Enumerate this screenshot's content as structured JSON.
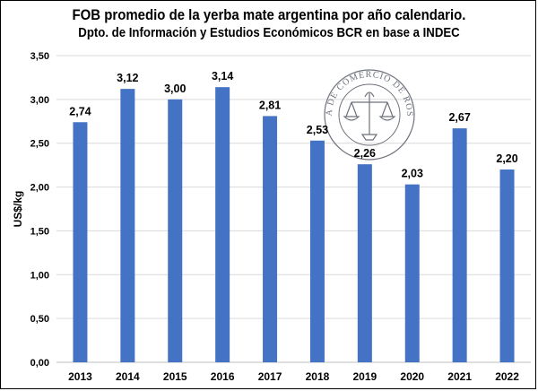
{
  "chart_data": {
    "type": "bar",
    "title": "FOB promedio de la yerba mate argentina por año calendario.",
    "subtitle": "Dpto. de Información y Estudios Económicos BCR en base a INDEC",
    "xlabel": "",
    "ylabel": "US$/kg",
    "categories": [
      "2013",
      "2014",
      "2015",
      "2016",
      "2017",
      "2018",
      "2019",
      "2020",
      "2021",
      "2022"
    ],
    "values": [
      2.74,
      3.12,
      3.0,
      3.14,
      2.81,
      2.53,
      2.26,
      2.03,
      2.67,
      2.2
    ],
    "value_labels": [
      "2,74",
      "3,12",
      "3,00",
      "3,14",
      "2,81",
      "2,53",
      "2,26",
      "2,03",
      "2,67",
      "2,20"
    ],
    "ylim": [
      0,
      3.5
    ],
    "yticks": [
      0,
      0.5,
      1,
      1.5,
      2,
      2.5,
      3,
      3.5
    ],
    "ytick_labels": [
      "0,00",
      "0,50",
      "1,00",
      "1,50",
      "2,00",
      "2,50",
      "3,00",
      "3,50"
    ],
    "grid": true,
    "legend": "none",
    "bar_color": "#4472C4",
    "grid_color": "#D9D9D9"
  },
  "watermark": {
    "text": "BOLSA DE COMERCIO DE ROSARIO",
    "color": "#555a66"
  }
}
